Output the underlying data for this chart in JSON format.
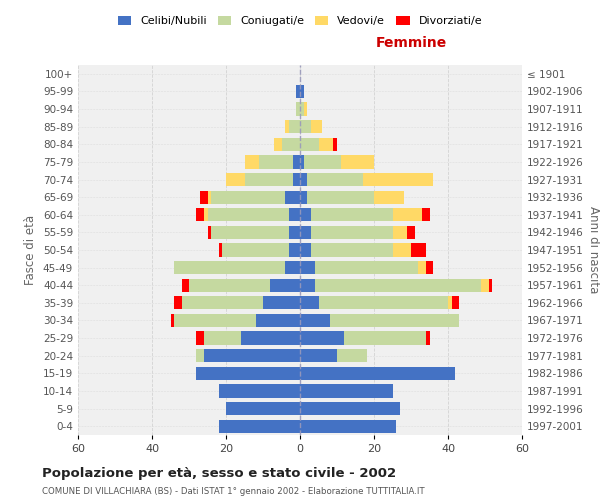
{
  "age_groups": [
    "100+",
    "95-99",
    "90-94",
    "85-89",
    "80-84",
    "75-79",
    "70-74",
    "65-69",
    "60-64",
    "55-59",
    "50-54",
    "45-49",
    "40-44",
    "35-39",
    "30-34",
    "25-29",
    "20-24",
    "15-19",
    "10-14",
    "5-9",
    "0-4"
  ],
  "birth_years": [
    "≤ 1901",
    "1902-1906",
    "1907-1911",
    "1912-1916",
    "1917-1921",
    "1922-1926",
    "1927-1931",
    "1932-1936",
    "1937-1941",
    "1942-1946",
    "1947-1951",
    "1952-1956",
    "1957-1961",
    "1962-1966",
    "1967-1971",
    "1972-1976",
    "1977-1981",
    "1982-1986",
    "1987-1991",
    "1992-1996",
    "1997-2001"
  ],
  "males": {
    "celibe": [
      0,
      1,
      0,
      0,
      0,
      2,
      2,
      4,
      3,
      3,
      3,
      4,
      8,
      10,
      12,
      16,
      26,
      28,
      22,
      20,
      22
    ],
    "coniugato": [
      0,
      0,
      1,
      3,
      5,
      9,
      13,
      20,
      22,
      21,
      18,
      30,
      22,
      22,
      22,
      10,
      2,
      0,
      0,
      0,
      0
    ],
    "vedovo": [
      0,
      0,
      0,
      1,
      2,
      4,
      5,
      1,
      1,
      0,
      0,
      0,
      0,
      0,
      0,
      0,
      0,
      0,
      0,
      0,
      0
    ],
    "divorziato": [
      0,
      0,
      0,
      0,
      0,
      0,
      0,
      2,
      2,
      1,
      1,
      0,
      2,
      2,
      1,
      2,
      0,
      0,
      0,
      0,
      0
    ]
  },
  "females": {
    "nubile": [
      0,
      1,
      0,
      0,
      0,
      1,
      2,
      2,
      3,
      3,
      3,
      4,
      4,
      5,
      8,
      12,
      10,
      42,
      25,
      27,
      26
    ],
    "coniugata": [
      0,
      0,
      1,
      3,
      5,
      10,
      15,
      18,
      22,
      22,
      22,
      28,
      45,
      35,
      35,
      22,
      8,
      0,
      0,
      0,
      0
    ],
    "vedova": [
      0,
      0,
      1,
      3,
      4,
      9,
      19,
      8,
      8,
      4,
      5,
      2,
      2,
      1,
      0,
      0,
      0,
      0,
      0,
      0,
      0
    ],
    "divorziata": [
      0,
      0,
      0,
      0,
      1,
      0,
      0,
      0,
      2,
      2,
      4,
      2,
      1,
      2,
      0,
      1,
      0,
      0,
      0,
      0,
      0
    ]
  },
  "colors": {
    "celibe": "#4472C4",
    "coniugato": "#C5D9A0",
    "vedovo": "#FFD966",
    "divorziato": "#FF0000"
  },
  "title_main": "Popolazione per età, sesso e stato civile - 2002",
  "title_sub": "COMUNE DI VILLACHIARA (BS) - Dati ISTAT 1° gennaio 2002 - Elaborazione TUTTITALIA.IT",
  "xlabel_right": "Femmine",
  "ylabel_left": "Fasce di età",
  "ylabel_right": "Anni di nascita",
  "xlim": 60,
  "legend_labels": [
    "Celibi/Nubili",
    "Coniugati/e",
    "Vedovi/e",
    "Divorziati/e"
  ],
  "bg_color": "#FFFFFF",
  "plot_bg": "#F0F0F0"
}
